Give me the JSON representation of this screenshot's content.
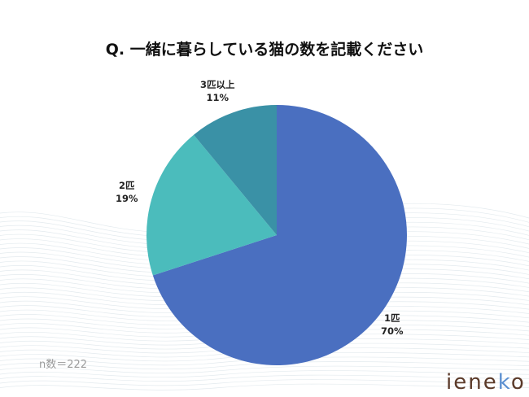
{
  "chart_data": {
    "type": "pie",
    "title": "Q. 一緒に暮らしている猫の数を記載ください",
    "slices": [
      {
        "label": "1匹",
        "value": 70,
        "pct_label": "70%",
        "color": "#4a6fc0"
      },
      {
        "label": "2匹",
        "value": 19,
        "pct_label": "19%",
        "color": "#4bbcbc"
      },
      {
        "label": "3匹以上",
        "value": 11,
        "pct_label": "11%",
        "color": "#3a91a6"
      }
    ],
    "start": "top",
    "direction": "clockwise"
  },
  "footnote": "n数＝222",
  "logo": {
    "pre": "iene",
    "k": "k",
    "post": "o"
  }
}
